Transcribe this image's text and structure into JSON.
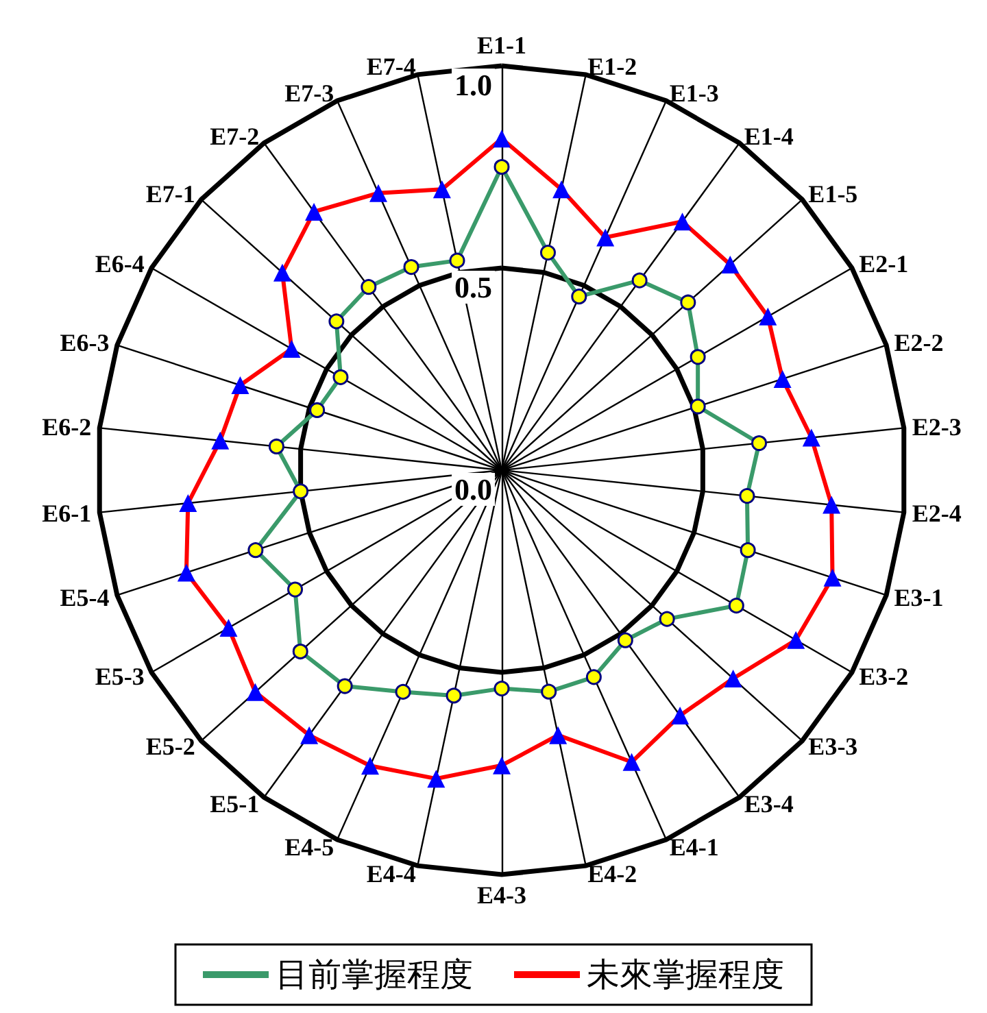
{
  "chart_data": {
    "type": "radar",
    "categories": [
      "E1-1",
      "E1-2",
      "E1-3",
      "E1-4",
      "E1-5",
      "E2-1",
      "E2-2",
      "E2-3",
      "E2-4",
      "E3-1",
      "E3-2",
      "E3-3",
      "E3-4",
      "E4-1",
      "E4-2",
      "E4-3",
      "E4-4",
      "E4-5",
      "E5-1",
      "E5-2",
      "E5-3",
      "E5-4",
      "E6-1",
      "E6-2",
      "E6-3",
      "E6-4",
      "E7-1",
      "E7-2",
      "E7-3",
      "E7-4"
    ],
    "series": [
      {
        "name": "目前掌握程度",
        "color": "#3a9a6a",
        "marker": "circle",
        "values": [
          0.75,
          0.55,
          0.47,
          0.58,
          0.62,
          0.56,
          0.51,
          0.64,
          0.61,
          0.64,
          0.67,
          0.55,
          0.52,
          0.56,
          0.56,
          0.54,
          0.57,
          0.6,
          0.66,
          0.67,
          0.59,
          0.64,
          0.5,
          0.56,
          0.48,
          0.46,
          0.55,
          0.56,
          0.55,
          0.53
        ]
      },
      {
        "name": "未來掌握程度",
        "color": "#ff0000",
        "marker": "triangle",
        "values": [
          0.82,
          0.71,
          0.63,
          0.76,
          0.76,
          0.76,
          0.73,
          0.77,
          0.82,
          0.86,
          0.84,
          0.77,
          0.75,
          0.79,
          0.67,
          0.73,
          0.78,
          0.8,
          0.81,
          0.82,
          0.78,
          0.82,
          0.78,
          0.7,
          0.68,
          0.6,
          0.73,
          0.79,
          0.75,
          0.71
        ]
      }
    ],
    "ylim": [
      0,
      1
    ],
    "yticks": [
      {
        "value": 0,
        "label": "0.0"
      },
      0.5,
      {
        "value": 1,
        "label": "1.0"
      }
    ],
    "grid": true,
    "legend": "bottom"
  }
}
